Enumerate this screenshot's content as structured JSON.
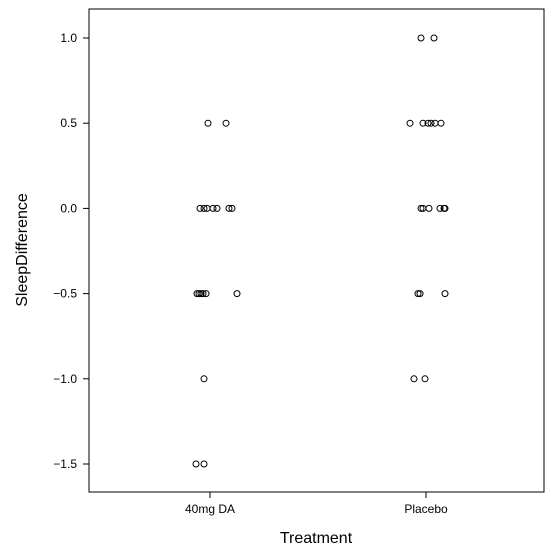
{
  "chart_data": {
    "type": "scatter",
    "title": "",
    "xlabel": "Treatment",
    "ylabel": "SleepDifference",
    "categories": [
      "40mg DA",
      "Placebo"
    ],
    "ylim": [
      -1.65,
      1.17
    ],
    "yticks": [
      1.0,
      0.5,
      0.0,
      -0.5,
      -1.0,
      -1.5
    ],
    "ytick_labels": [
      "1.0",
      "0.5",
      "0.0",
      "−0.5",
      "−1.0",
      "−1.5"
    ],
    "jitter": true,
    "grid": false,
    "marker": "open-circle",
    "series": [
      {
        "points": [
          {
            "category": "40mg DA",
            "y": 0.5
          },
          {
            "category": "40mg DA",
            "y": 0.5
          },
          {
            "category": "40mg DA",
            "y": 0.0
          },
          {
            "category": "40mg DA",
            "y": 0.0
          },
          {
            "category": "40mg DA",
            "y": 0.0
          },
          {
            "category": "40mg DA",
            "y": 0.0
          },
          {
            "category": "40mg DA",
            "y": 0.0
          },
          {
            "category": "40mg DA",
            "y": 0.0
          },
          {
            "category": "40mg DA",
            "y": 0.0
          },
          {
            "category": "40mg DA",
            "y": -0.5
          },
          {
            "category": "40mg DA",
            "y": -0.5
          },
          {
            "category": "40mg DA",
            "y": -0.5
          },
          {
            "category": "40mg DA",
            "y": -0.5
          },
          {
            "category": "40mg DA",
            "y": -0.5
          },
          {
            "category": "40mg DA",
            "y": -0.5
          },
          {
            "category": "40mg DA",
            "y": -1.0
          },
          {
            "category": "40mg DA",
            "y": -1.5
          },
          {
            "category": "40mg DA",
            "y": -1.5
          },
          {
            "category": "Placebo",
            "y": 1.0
          },
          {
            "category": "Placebo",
            "y": 1.0
          },
          {
            "category": "Placebo",
            "y": 0.5
          },
          {
            "category": "Placebo",
            "y": 0.5
          },
          {
            "category": "Placebo",
            "y": 0.5
          },
          {
            "category": "Placebo",
            "y": 0.5
          },
          {
            "category": "Placebo",
            "y": 0.5
          },
          {
            "category": "Placebo",
            "y": 0.5
          },
          {
            "category": "Placebo",
            "y": 0.0
          },
          {
            "category": "Placebo",
            "y": 0.0
          },
          {
            "category": "Placebo",
            "y": 0.0
          },
          {
            "category": "Placebo",
            "y": 0.0
          },
          {
            "category": "Placebo",
            "y": 0.0
          },
          {
            "category": "Placebo",
            "y": 0.0
          },
          {
            "category": "Placebo",
            "y": -0.5
          },
          {
            "category": "Placebo",
            "y": -0.5
          },
          {
            "category": "Placebo",
            "y": -0.5
          },
          {
            "category": "Placebo",
            "y": -1.0
          },
          {
            "category": "Placebo",
            "y": -1.0
          }
        ]
      }
    ]
  }
}
